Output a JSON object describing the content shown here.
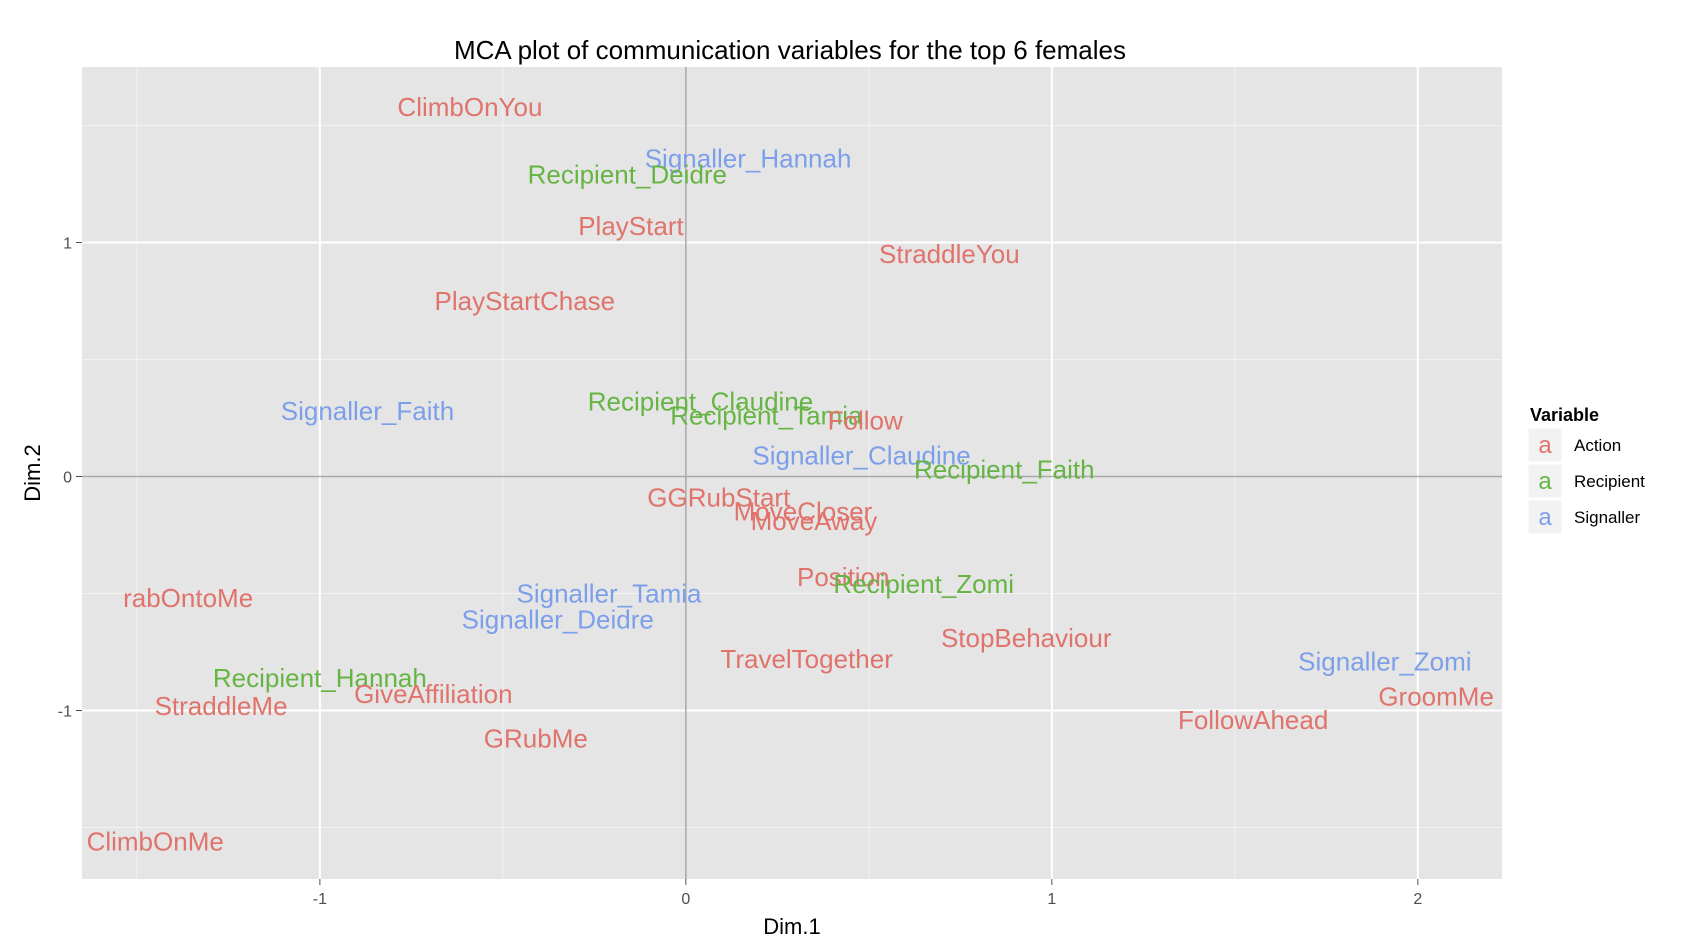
{
  "chart_data": {
    "type": "scatter",
    "title": "MCA plot of communication variables for the top 6 females",
    "xlabel": "Dim.1",
    "ylabel": "Dim.2",
    "xlim": [
      -1.65,
      2.23
    ],
    "ylim": [
      -1.72,
      1.75
    ],
    "xticks": [
      -1,
      0,
      1,
      2
    ],
    "yticks": [
      -1,
      0,
      1
    ],
    "grid": true,
    "legend": {
      "title": "Variable",
      "position": "right",
      "key_glyph": "a",
      "entries": [
        {
          "name": "Action",
          "color": "#E0736B"
        },
        {
          "name": "Recipient",
          "color": "#66B544"
        },
        {
          "name": "Signaller",
          "color": "#7C9FEA"
        }
      ]
    },
    "points": [
      {
        "label": "ClimbOnYou",
        "x": -0.59,
        "y": 1.58,
        "group": "Action"
      },
      {
        "label": "Signaller_Hannah",
        "x": 0.17,
        "y": 1.36,
        "group": "Signaller"
      },
      {
        "label": "Recipient_Deidre",
        "x": -0.16,
        "y": 1.29,
        "group": "Recipient"
      },
      {
        "label": "PlayStart",
        "x": -0.15,
        "y": 1.07,
        "group": "Action"
      },
      {
        "label": "StraddleYou",
        "x": 0.72,
        "y": 0.95,
        "group": "Action"
      },
      {
        "label": "PlayStartChase",
        "x": -0.44,
        "y": 0.75,
        "group": "Action"
      },
      {
        "label": "Signaller_Faith",
        "x": -0.87,
        "y": 0.28,
        "group": "Signaller"
      },
      {
        "label": "Recipient_Claudine",
        "x": 0.04,
        "y": 0.32,
        "group": "Recipient"
      },
      {
        "label": "Recipient_Tamia",
        "x": 0.22,
        "y": 0.26,
        "group": "Recipient"
      },
      {
        "label": "Follow",
        "x": 0.49,
        "y": 0.24,
        "group": "Action"
      },
      {
        "label": "Signaller_Claudine",
        "x": 0.48,
        "y": 0.09,
        "group": "Signaller"
      },
      {
        "label": "Recipient_Faith",
        "x": 0.87,
        "y": 0.03,
        "group": "Recipient"
      },
      {
        "label": "GGRubStart",
        "x": 0.09,
        "y": -0.09,
        "group": "Action"
      },
      {
        "label": "MoveCloser",
        "x": 0.32,
        "y": -0.15,
        "group": "Action"
      },
      {
        "label": "MoveAway",
        "x": 0.35,
        "y": -0.19,
        "group": "Action"
      },
      {
        "label": "Position",
        "x": 0.43,
        "y": -0.43,
        "group": "Action"
      },
      {
        "label": "Recipient_Zomi",
        "x": 0.65,
        "y": -0.46,
        "group": "Recipient"
      },
      {
        "label": "rabOntoMe",
        "x": -1.36,
        "y": -0.52,
        "group": "Action"
      },
      {
        "label": "Signaller_Tamia",
        "x": -0.21,
        "y": -0.5,
        "group": "Signaller"
      },
      {
        "label": "Signaller_Deidre",
        "x": -0.35,
        "y": -0.61,
        "group": "Signaller"
      },
      {
        "label": "StopBehaviour",
        "x": 0.93,
        "y": -0.69,
        "group": "Action"
      },
      {
        "label": "TravelTogether",
        "x": 0.33,
        "y": -0.78,
        "group": "Action"
      },
      {
        "label": "Signaller_Zomi",
        "x": 1.91,
        "y": -0.79,
        "group": "Signaller"
      },
      {
        "label": "Recipient_Hannah",
        "x": -1.0,
        "y": -0.86,
        "group": "Recipient"
      },
      {
        "label": "GiveAffiliation",
        "x": -0.69,
        "y": -0.93,
        "group": "Action"
      },
      {
        "label": "GroomMe",
        "x": 2.05,
        "y": -0.94,
        "group": "Action"
      },
      {
        "label": "StraddleMe",
        "x": -1.27,
        "y": -0.98,
        "group": "Action"
      },
      {
        "label": "FollowAhead",
        "x": 1.55,
        "y": -1.04,
        "group": "Action"
      },
      {
        "label": "GRubMe",
        "x": -0.41,
        "y": -1.12,
        "group": "Action"
      },
      {
        "label": "ClimbOnMe",
        "x": -1.45,
        "y": -1.56,
        "group": "Action"
      }
    ]
  }
}
